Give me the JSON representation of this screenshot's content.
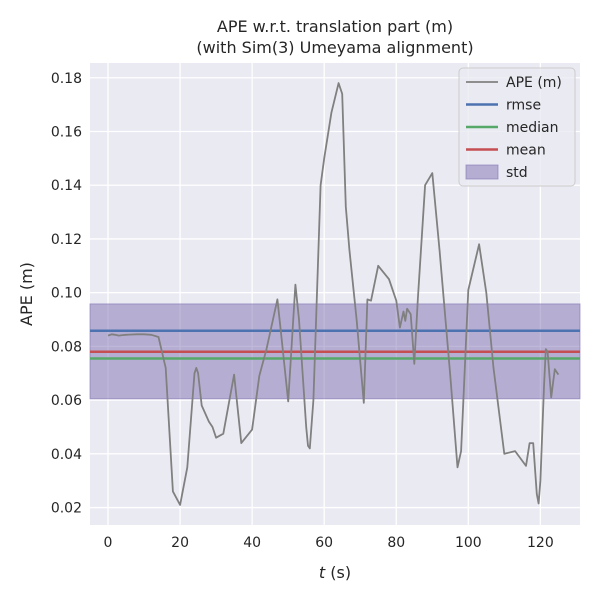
{
  "chart_data": {
    "type": "line",
    "title": "APE w.r.t. translation part (m)",
    "subtitle": "(with Sim(3) Umeyama alignment)",
    "xlabel_italic": "t",
    "xlabel_rest": " (s)",
    "ylabel": "APE (m)",
    "xlim": [
      -5,
      131
    ],
    "ylim": [
      0.0135,
      0.1855
    ],
    "xticks": [
      0,
      20,
      40,
      60,
      80,
      100,
      120
    ],
    "yticks": [
      0.02,
      0.04,
      0.06,
      0.08,
      0.1,
      0.12,
      0.14,
      0.16,
      0.18
    ],
    "xtick_labels": [
      "0",
      "20",
      "40",
      "60",
      "80",
      "100",
      "120"
    ],
    "ytick_labels": [
      "0.02",
      "0.04",
      "0.06",
      "0.08",
      "0.10",
      "0.12",
      "0.14",
      "0.16",
      "0.18"
    ],
    "grid": true,
    "background": "#eaeaf2",
    "legend_position": "top-right",
    "series": [
      {
        "name": "APE (m)",
        "color": "#808080",
        "x": [
          0,
          1,
          2,
          3,
          4,
          5,
          6,
          8,
          10,
          12,
          14,
          16,
          18,
          20,
          22,
          24,
          24.5,
          25,
          26,
          28,
          29,
          30,
          32,
          35,
          37,
          40,
          42,
          44,
          47,
          48,
          50,
          52,
          53,
          55,
          55.5,
          56,
          57,
          59,
          60,
          62,
          64,
          65,
          66,
          67,
          69,
          71,
          72,
          73,
          75,
          78,
          80,
          81,
          82,
          82.5,
          83,
          84,
          85,
          86,
          88,
          90,
          92,
          95,
          97,
          98,
          100,
          103,
          105,
          107,
          110,
          113,
          116,
          117,
          118,
          119,
          119.5,
          120,
          121,
          121.5,
          122,
          123,
          124,
          125
        ],
        "y": [
          0.084,
          0.0845,
          0.0843,
          0.084,
          0.0842,
          0.0843,
          0.0844,
          0.0845,
          0.0845,
          0.0843,
          0.0835,
          0.072,
          0.026,
          0.021,
          0.035,
          0.07,
          0.072,
          0.07,
          0.058,
          0.052,
          0.05,
          0.046,
          0.0475,
          0.0695,
          0.044,
          0.049,
          0.069,
          0.079,
          0.0975,
          0.085,
          0.0595,
          0.103,
          0.09,
          0.05,
          0.043,
          0.042,
          0.06,
          0.14,
          0.15,
          0.167,
          0.178,
          0.174,
          0.132,
          0.116,
          0.09,
          0.059,
          0.0975,
          0.097,
          0.11,
          0.105,
          0.097,
          0.087,
          0.093,
          0.0895,
          0.094,
          0.092,
          0.0735,
          0.098,
          0.14,
          0.1445,
          0.116,
          0.069,
          0.035,
          0.041,
          0.101,
          0.118,
          0.1,
          0.072,
          0.04,
          0.041,
          0.0355,
          0.044,
          0.044,
          0.025,
          0.0215,
          0.03,
          0.065,
          0.079,
          0.078,
          0.061,
          0.0715,
          0.0695
        ]
      },
      {
        "name": "rmse",
        "color": "#4c72b0",
        "value": 0.0858
      },
      {
        "name": "median",
        "color": "#55a868",
        "value": 0.0755
      },
      {
        "name": "mean",
        "color": "#c44e52",
        "value": 0.078
      },
      {
        "name": "std",
        "color": "#8172b2",
        "range": [
          0.0605,
          0.0958
        ]
      }
    ]
  }
}
